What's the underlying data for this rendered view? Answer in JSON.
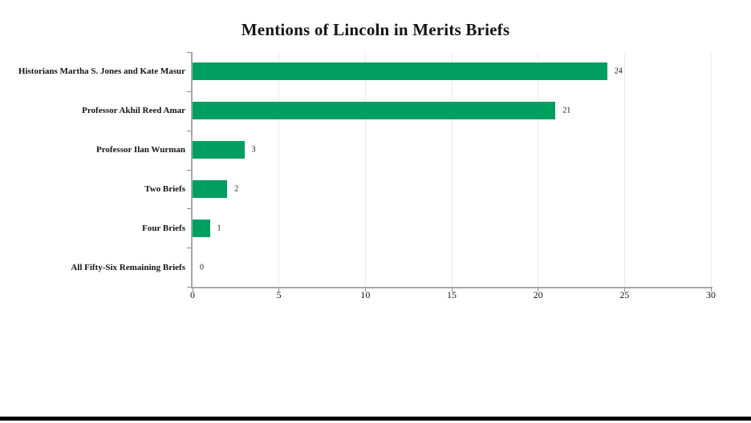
{
  "chart_data": {
    "type": "bar",
    "orientation": "horizontal",
    "title": "Mentions of Lincoln in Merits Briefs",
    "categories": [
      "Historians Martha S. Jones and Kate Masur",
      "Professor Akhil Reed Amar",
      "Professor Ilan Wurman",
      "Two Briefs",
      "Four Briefs",
      "All Fifty-Six Remaining Briefs"
    ],
    "values": [
      24,
      21,
      3,
      2,
      1,
      0
    ],
    "value_labels": [
      "24",
      "21",
      "3",
      "2",
      "1",
      "0"
    ],
    "xlabel": "",
    "ylabel": "",
    "xlim": [
      0,
      30
    ],
    "xticks": [
      0,
      5,
      10,
      15,
      20,
      25,
      30
    ],
    "grid": true,
    "legend": false,
    "bar_color": "#009e60",
    "axis_color": "#a6a6a6",
    "tick_color": "#8c8c8c",
    "gridline_color": "#ebebeb",
    "text_color": "#141414"
  }
}
